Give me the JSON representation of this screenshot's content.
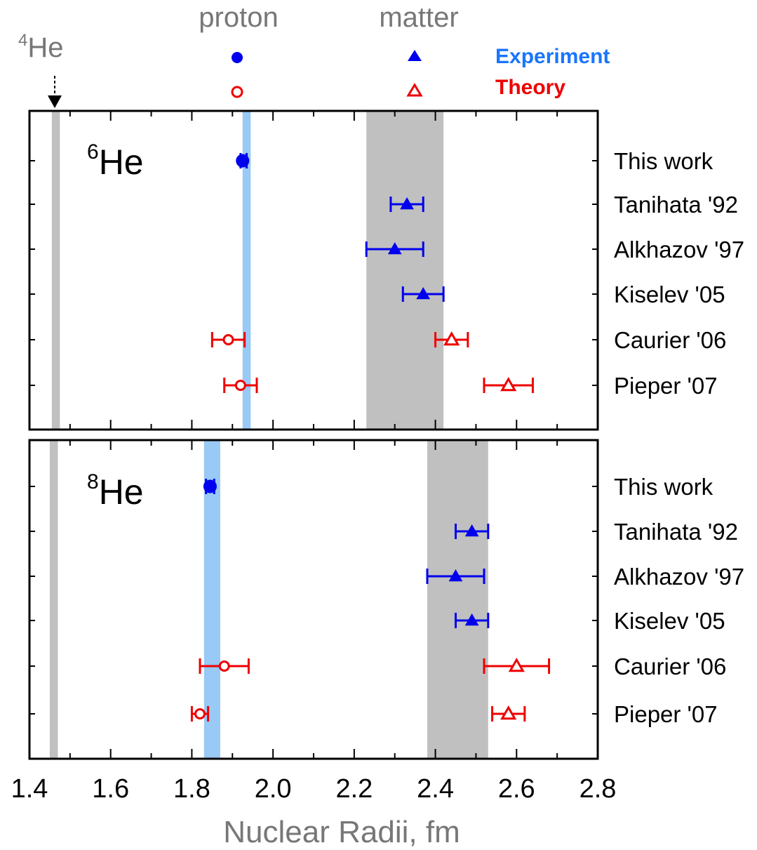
{
  "chart_data": {
    "type": "scatter",
    "xlabel": "Nuclear Radii, fm",
    "xlim": [
      1.4,
      2.8
    ],
    "xticks": [
      "1.4",
      "1.6",
      "1.8",
      "2.0",
      "2.2",
      "2.4",
      "2.6",
      "2.8"
    ],
    "he4_label": "He",
    "he4_mass": "4",
    "he4_radius": 1.46,
    "legend": {
      "proton": "proton",
      "matter": "matter",
      "experiment": "Experiment",
      "theory": "Theory",
      "experiment_color": "#0000ee",
      "theory_color": "#ee0000"
    },
    "colors": {
      "experiment": "#0000ee",
      "theory": "#ee0000",
      "experiment_label": "#1a75ff",
      "theory_label": "#ee0000",
      "proton_band": "#99c9f5",
      "matter_band": "#c0c0c0",
      "he4_band": "#c0c0c0"
    },
    "panels": [
      {
        "nucleus": "He",
        "mass": "6",
        "proton_band": [
          1.925,
          1.945
        ],
        "matter_band": [
          2.23,
          2.42
        ],
        "he4_band": [
          1.455,
          1.475
        ],
        "rows": [
          {
            "label": "This work",
            "type": "experiment",
            "proton": {
              "value": 1.925,
              "err": [
                1.92,
                1.935
              ]
            },
            "matter": null
          },
          {
            "label": "Tanihata '92",
            "type": "experiment",
            "proton": null,
            "matter": {
              "value": 2.33,
              "err": [
                2.29,
                2.37
              ]
            }
          },
          {
            "label": "Alkhazov '97",
            "type": "experiment",
            "proton": null,
            "matter": {
              "value": 2.3,
              "err": [
                2.23,
                2.37
              ]
            }
          },
          {
            "label": "Kiselev '05",
            "type": "experiment",
            "proton": null,
            "matter": {
              "value": 2.37,
              "err": [
                2.32,
                2.42
              ]
            }
          },
          {
            "label": "Caurier '06",
            "type": "theory",
            "proton": {
              "value": 1.89,
              "err": [
                1.85,
                1.93
              ]
            },
            "matter": {
              "value": 2.44,
              "err": [
                2.4,
                2.48
              ]
            }
          },
          {
            "label": "Pieper '07",
            "type": "theory",
            "proton": {
              "value": 1.92,
              "err": [
                1.88,
                1.96
              ]
            },
            "matter": {
              "value": 2.58,
              "err": [
                2.52,
                2.64
              ]
            }
          }
        ]
      },
      {
        "nucleus": "He",
        "mass": "8",
        "proton_band": [
          1.83,
          1.87
        ],
        "matter_band": [
          2.38,
          2.53
        ],
        "he4_band": [
          1.45,
          1.47
        ],
        "rows": [
          {
            "label": "This work",
            "type": "experiment",
            "proton": {
              "value": 1.845,
              "err": [
                1.835,
                1.855
              ]
            },
            "matter": null
          },
          {
            "label": "Tanihata '92",
            "type": "experiment",
            "proton": null,
            "matter": {
              "value": 2.49,
              "err": [
                2.45,
                2.53
              ]
            }
          },
          {
            "label": "Alkhazov '97",
            "type": "experiment",
            "proton": null,
            "matter": {
              "value": 2.45,
              "err": [
                2.38,
                2.52
              ]
            }
          },
          {
            "label": "Kiselev '05",
            "type": "experiment",
            "proton": null,
            "matter": {
              "value": 2.49,
              "err": [
                2.45,
                2.53
              ]
            }
          },
          {
            "label": "Caurier '06",
            "type": "theory",
            "proton": {
              "value": 1.88,
              "err": [
                1.82,
                1.94
              ]
            },
            "matter": {
              "value": 2.6,
              "err": [
                2.52,
                2.68
              ]
            }
          },
          {
            "label": "Pieper '07",
            "type": "theory",
            "proton": {
              "value": 1.82,
              "err": [
                1.8,
                1.84
              ]
            },
            "matter": {
              "value": 2.58,
              "err": [
                2.54,
                2.62
              ]
            }
          }
        ]
      }
    ]
  }
}
